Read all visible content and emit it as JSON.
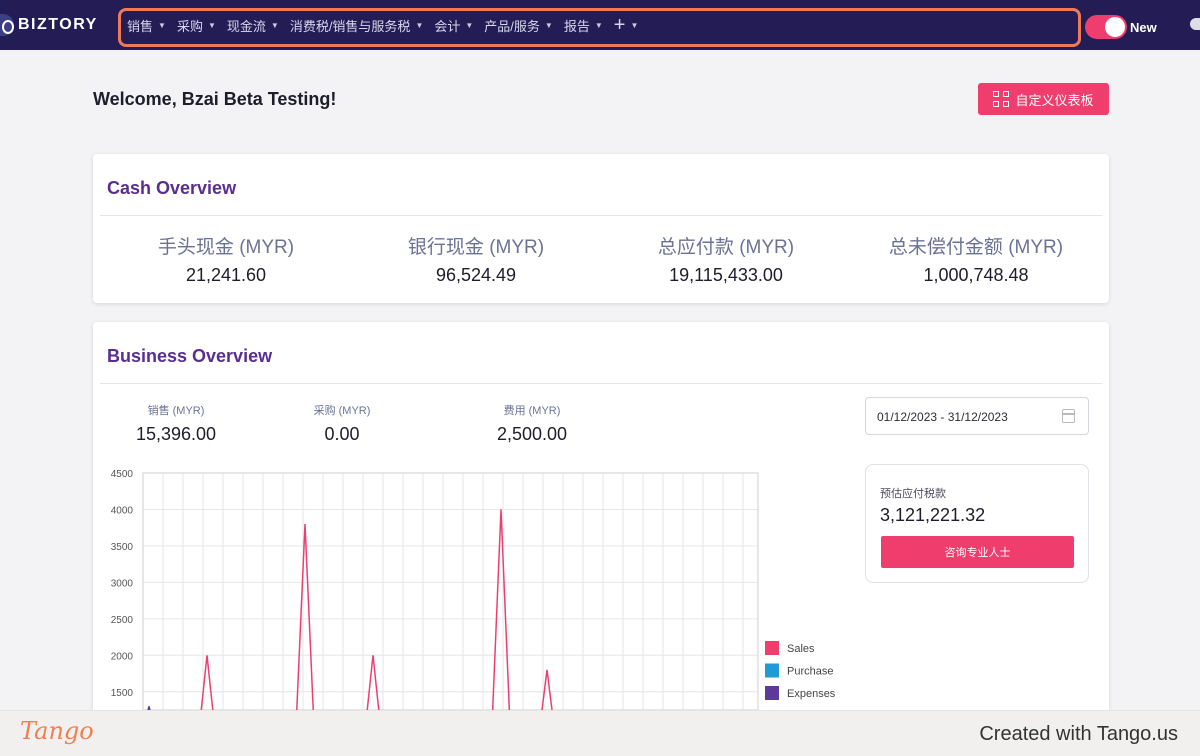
{
  "nav": {
    "logo": "BIZTORY",
    "items": [
      {
        "label": "销售"
      },
      {
        "label": "采购"
      },
      {
        "label": "现金流"
      },
      {
        "label": "消费税/销售与服务税"
      },
      {
        "label": "会计"
      },
      {
        "label": "产品/服务"
      },
      {
        "label": "报告"
      }
    ],
    "plus": "+",
    "toggle_label": "New"
  },
  "welcome": "Welcome, Bzai Beta Testing!",
  "customize_button": "自定义仪表板",
  "cash_overview": {
    "title": "Cash Overview",
    "stats": [
      {
        "label": "手头现金 (MYR)",
        "value": "21,241.60"
      },
      {
        "label": "银行现金 (MYR)",
        "value": "96,524.49"
      },
      {
        "label": "总应付款 (MYR)",
        "value": "19,115,433.00"
      },
      {
        "label": "总未偿付金额 (MYR)",
        "value": "1,000,748.48"
      }
    ]
  },
  "business_overview": {
    "title": "Business Overview",
    "stats": [
      {
        "label": "销售 (MYR)",
        "value": "15,396.00"
      },
      {
        "label": "采购 (MYR)",
        "value": "0.00"
      },
      {
        "label": "费用 (MYR)",
        "value": "2,500.00"
      }
    ],
    "date_range": "01/12/2023 - 31/12/2023",
    "tax": {
      "label": "预估应付税款",
      "value": "3,121,221.32",
      "button": "咨询专业人士"
    }
  },
  "chart_data": {
    "type": "line",
    "y_ticks": [
      "4500",
      "4000",
      "3500",
      "3000",
      "2500",
      "2000",
      "1500"
    ],
    "ylim": [
      1250,
      4500
    ],
    "x_count": 31,
    "series": [
      {
        "name": "Sales",
        "color": "#ef3e6d",
        "points": [
          [
            3.2,
            2000
          ],
          [
            8.1,
            3800
          ],
          [
            11.5,
            2000
          ],
          [
            17.9,
            4000
          ],
          [
            20.2,
            1800
          ]
        ]
      },
      {
        "name": "Purchase",
        "color": "#1e9ad6",
        "points": []
      },
      {
        "name": "Expenses",
        "color": "#5b3a9a",
        "points": [
          [
            0.3,
            1300
          ]
        ]
      }
    ],
    "legend_position": "right"
  },
  "footer": {
    "logo": "Tango",
    "credit": "Created with Tango.us"
  }
}
